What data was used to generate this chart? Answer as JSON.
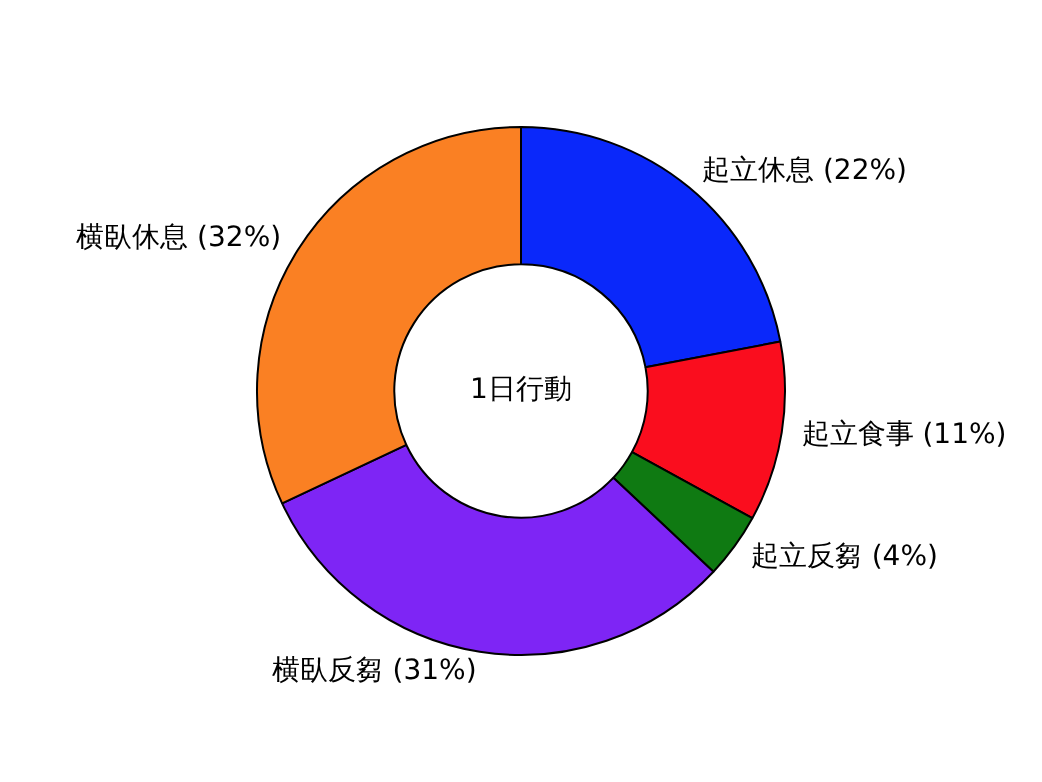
{
  "chart_data": {
    "type": "donut",
    "title": "1日行動",
    "categories": [
      "起立休息 (22%)",
      "起立食事 (11%)",
      "起立反芻 (4%)",
      "横臥反芻 (31%)",
      "横臥休息 (32%)"
    ],
    "values": [
      22,
      11,
      4,
      31,
      32
    ],
    "colors": [
      "#0a28fa",
      "#fa0d1e",
      "#0f7a12",
      "#7e25f5",
      "#fa8023"
    ],
    "legend": false
  }
}
